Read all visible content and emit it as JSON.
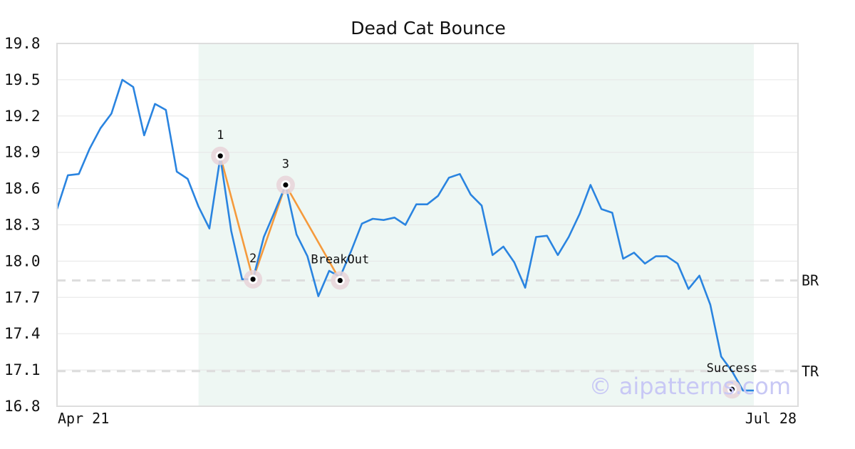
{
  "chart_data": {
    "type": "line",
    "title": "Dead Cat Bounce",
    "xlabel": "",
    "ylabel": "",
    "ylim": [
      16.8,
      19.8
    ],
    "yticks": [
      "19.8",
      "19.5",
      "19.2",
      "18.9",
      "18.6",
      "18.3",
      "18.0",
      "17.7",
      "17.4",
      "17.1",
      "16.8"
    ],
    "xtick_labels": [
      "Apr 21",
      "Jul 28"
    ],
    "grid": "horizontal",
    "series": [
      {
        "color": "#2a84e0",
        "values": [
          18.43,
          18.71,
          18.72,
          18.93,
          19.1,
          19.22,
          19.5,
          19.44,
          19.04,
          19.3,
          19.25,
          18.74,
          18.68,
          18.45,
          18.27,
          18.86,
          18.25,
          17.85,
          17.85,
          18.2,
          18.41,
          18.63,
          18.22,
          18.04,
          17.71,
          17.92,
          17.87,
          18.08,
          18.31,
          18.35,
          18.34,
          18.36,
          18.3,
          18.47,
          18.47,
          18.54,
          18.69,
          18.72,
          18.55,
          18.46,
          18.05,
          18.12,
          17.99,
          17.78,
          18.2,
          18.21,
          18.05,
          18.2,
          18.39,
          18.63,
          18.43,
          18.4,
          18.02,
          18.07,
          17.98,
          18.04,
          18.04,
          17.98,
          17.77,
          17.88,
          17.64,
          17.21,
          17.09,
          16.93,
          16.93
        ]
      }
    ],
    "pattern_line": {
      "color": "#f59a3c",
      "points": [
        [
          15,
          18.87
        ],
        [
          18,
          17.85
        ],
        [
          21,
          18.63
        ],
        [
          26,
          17.84
        ]
      ]
    },
    "markers": [
      {
        "label": "1",
        "index": 15,
        "value": 18.87
      },
      {
        "label": "2",
        "index": 18,
        "value": 17.85
      },
      {
        "label": "3",
        "index": 21,
        "value": 18.63
      },
      {
        "label": "BreakOut",
        "index": 26,
        "value": 17.84
      },
      {
        "label": "Success",
        "index": 62,
        "value": 16.94
      }
    ],
    "levels": [
      {
        "label": "BR",
        "value": 17.84,
        "style": "dashed"
      },
      {
        "label": "TR",
        "value": 17.09,
        "style": "dashed"
      }
    ],
    "shaded_region": {
      "from_index": 13,
      "to_index": 64,
      "color": "#eef7f3"
    },
    "watermark": "© aipatterns.com"
  }
}
